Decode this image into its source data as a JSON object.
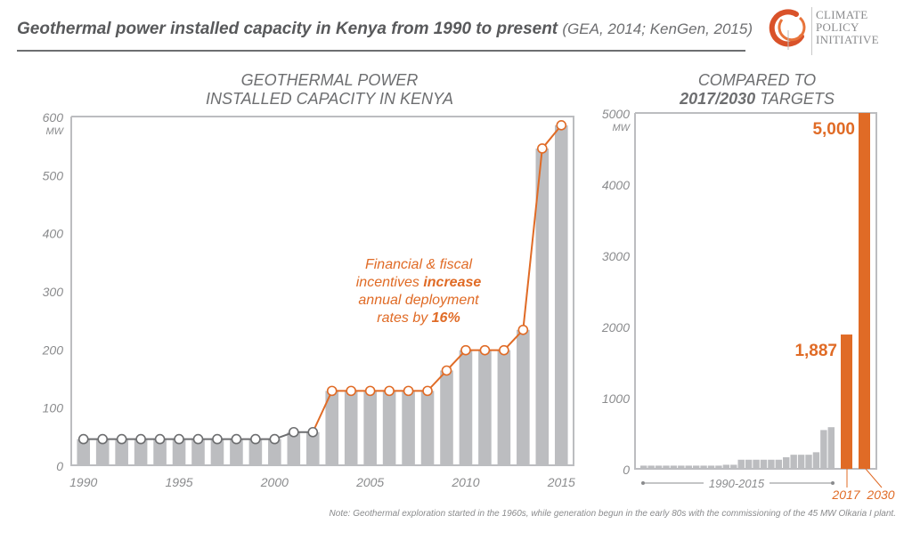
{
  "header": {
    "title_bold": "Geothermal power installed capacity in Kenya from 1990 to present",
    "title_source": "(GEA, 2014; KenGen, 2015)"
  },
  "logo": {
    "lines": [
      "CLIMATE",
      "POLICY",
      "INITIATIVE"
    ]
  },
  "colors": {
    "accent": "#e06b26",
    "bar_gray": "#bcbdc0",
    "axis_gray": "#bcbdc0",
    "text_gray": "#8a8b8d",
    "title_gray": "#58595b"
  },
  "note": "Note: Geothermal exploration started in the 1960s, while generation begun in the early 80s with the commissioning of the 45 MW Olkaria I plant.",
  "chart_data": [
    {
      "type": "bar",
      "title_lines": [
        "GEOTHERMAL POWER",
        "INSTALLED CAPACITY IN KENYA"
      ],
      "xlabel": "",
      "ylabel": "MW",
      "ylim": [
        0,
        600
      ],
      "yticks": [
        0,
        100,
        200,
        300,
        400,
        500,
        600
      ],
      "ytick_unit_label": "MW",
      "xticks": [
        1990,
        1995,
        2000,
        2005,
        2010,
        2015
      ],
      "categories": [
        1990,
        1991,
        1992,
        1993,
        1994,
        1995,
        1996,
        1997,
        1998,
        1999,
        2000,
        2001,
        2002,
        2003,
        2004,
        2005,
        2006,
        2007,
        2008,
        2009,
        2010,
        2011,
        2012,
        2013,
        2014,
        2015
      ],
      "values": [
        45,
        45,
        45,
        45,
        45,
        45,
        45,
        45,
        45,
        45,
        45,
        57,
        57,
        128,
        128,
        128,
        128,
        128,
        128,
        163,
        198,
        198,
        198,
        233,
        545,
        585
      ],
      "line_overlay": true,
      "line_highlight_from": 2002,
      "annotation": {
        "lines": [
          [
            {
              "text": "Financial & fiscal",
              "bold": false
            }
          ],
          [
            {
              "text": "incentives ",
              "bold": false
            },
            {
              "text": "increase",
              "bold": true
            }
          ],
          [
            {
              "text": "annual deployment",
              "bold": false
            }
          ],
          [
            {
              "text": "rates by ",
              "bold": false
            },
            {
              "text": "16%",
              "bold": true
            }
          ]
        ]
      },
      "grid": false
    },
    {
      "type": "bar",
      "title_lines": [
        [
          {
            "text": "COMPARED TO",
            "bold": false
          }
        ],
        [
          {
            "text": "2017/2030",
            "bold": true
          },
          {
            "text": " TARGETS",
            "bold": false
          }
        ]
      ],
      "ylim": [
        0,
        5000
      ],
      "yticks": [
        0,
        1000,
        2000,
        3000,
        4000,
        5000
      ],
      "ytick_unit_label": "MW",
      "historic_range_label": "1990-2015",
      "historic_values": [
        45,
        45,
        45,
        45,
        45,
        45,
        45,
        45,
        45,
        45,
        45,
        57,
        57,
        128,
        128,
        128,
        128,
        128,
        128,
        163,
        198,
        198,
        198,
        233,
        545,
        585
      ],
      "targets": [
        {
          "year": "2017",
          "value": 1887,
          "label": "1,887"
        },
        {
          "year": "2030",
          "value": 5000,
          "label": "5,000"
        }
      ],
      "grid": false
    }
  ]
}
